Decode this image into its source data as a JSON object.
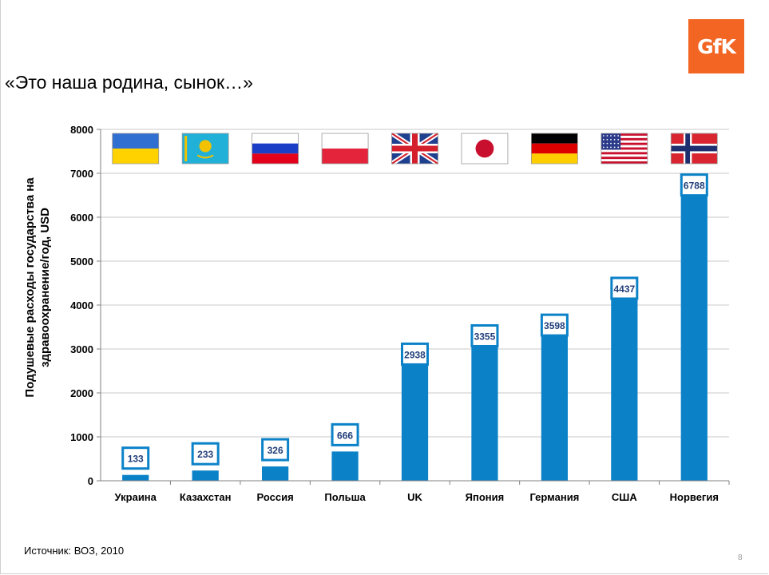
{
  "slide": {
    "title": "«Это наша родина, сынок…»",
    "logo": "GfK",
    "source": "Источник: ВОЗ, 2010",
    "page_number": "8"
  },
  "chart_data": {
    "type": "bar",
    "title": "",
    "xlabel": "",
    "ylabel": "Подушевые расходы государства на здравоохранение/год, USD",
    "ylim": [
      0,
      8000
    ],
    "yticks": [
      0,
      1000,
      2000,
      3000,
      4000,
      5000,
      6000,
      7000,
      8000
    ],
    "categories": [
      "Украина",
      "Казахстан",
      "Россия",
      "Польша",
      "UK",
      "Япония",
      "Германия",
      "США",
      "Норвегия"
    ],
    "values": [
      133,
      233,
      326,
      666,
      2938,
      3355,
      3598,
      4437,
      6788
    ],
    "data_labels": [
      "133",
      "233",
      "326",
      "666",
      "2938",
      "3355",
      "3598",
      "4437",
      "6788"
    ],
    "flags": [
      "ukraine-flag-icon",
      "kazakhstan-flag-icon",
      "russia-flag-icon",
      "poland-flag-icon",
      "uk-flag-icon",
      "japan-flag-icon",
      "germany-flag-icon",
      "usa-flag-icon",
      "norway-flag-icon"
    ],
    "bar_color": "#0b82c8",
    "label_border_color": "#0b82c8",
    "label_text_color": "#1f3e7a",
    "grid": true
  }
}
